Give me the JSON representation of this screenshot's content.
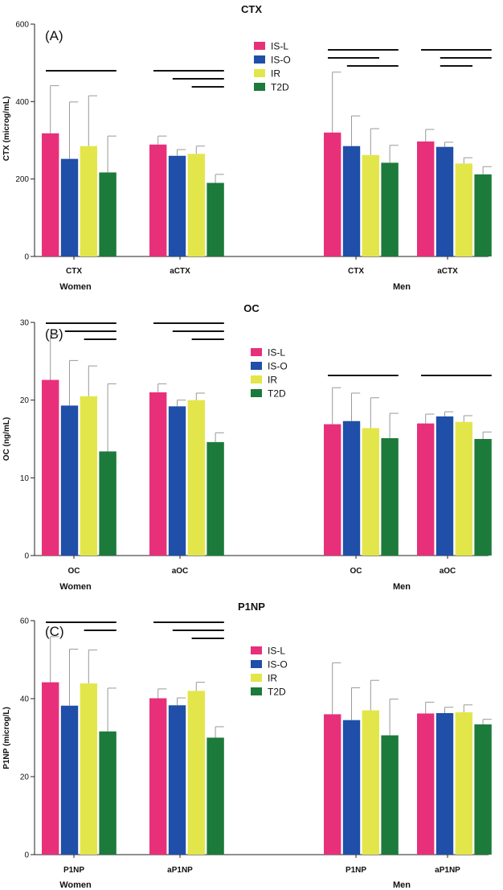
{
  "chart_data": [
    {
      "type": "bar",
      "panel": "(A)",
      "title": "CTX",
      "ylabel": "CTX (microg/mL)",
      "ylim": [
        0,
        600
      ],
      "yticks": [
        0,
        200,
        400,
        600
      ],
      "groups": [
        "Women",
        "Men"
      ],
      "categories": [
        "CTX",
        "aCTX",
        "CTX",
        "aCTX"
      ],
      "series": [
        {
          "name": "IS-L",
          "values": [
            318,
            289,
            320,
            297
          ],
          "errors": [
            123,
            22,
            156,
            31
          ]
        },
        {
          "name": "IS-O",
          "values": [
            252,
            260,
            285,
            283
          ],
          "errors": [
            147,
            16,
            78,
            12
          ]
        },
        {
          "name": "IR",
          "values": [
            285,
            265,
            262,
            240
          ],
          "errors": [
            130,
            20,
            68,
            15
          ]
        },
        {
          "name": "T2D",
          "values": [
            217,
            190,
            242,
            212
          ],
          "errors": [
            94,
            22,
            45,
            20
          ]
        }
      ],
      "significance": [
        {
          "cat": 0,
          "from": 0,
          "to": 3,
          "level": 0
        },
        {
          "cat": 1,
          "from": 0,
          "to": 3,
          "level": 0
        },
        {
          "cat": 1,
          "from": 1,
          "to": 3,
          "level": 1
        },
        {
          "cat": 1,
          "from": 2,
          "to": 3,
          "level": 2
        },
        {
          "cat": 2,
          "from": 0,
          "to": 3,
          "level": 0
        },
        {
          "cat": 2,
          "from": 0,
          "to": 2,
          "level": 1
        },
        {
          "cat": 2,
          "from": 1,
          "to": 3,
          "level": 2
        },
        {
          "cat": 3,
          "from": 0,
          "to": 3,
          "level": 0
        },
        {
          "cat": 3,
          "from": 1,
          "to": 3,
          "level": 1
        },
        {
          "cat": 3,
          "from": 1,
          "to": 2,
          "level": 2
        }
      ],
      "legend_position": "upper-center"
    },
    {
      "type": "bar",
      "panel": "(B)",
      "title": "OC",
      "ylabel": "OC (ng/mL)",
      "ylim": [
        0,
        30
      ],
      "yticks": [
        0,
        10,
        20,
        30
      ],
      "groups": [
        "Women",
        "Men"
      ],
      "categories": [
        "OC",
        "aOC",
        "OC",
        "aOC"
      ],
      "series": [
        {
          "name": "IS-L",
          "values": [
            22.6,
            21.0,
            16.9,
            17.0
          ],
          "errors": [
            5.8,
            1.1,
            4.7,
            1.2
          ]
        },
        {
          "name": "IS-O",
          "values": [
            19.3,
            19.2,
            17.3,
            17.9
          ],
          "errors": [
            5.8,
            0.8,
            3.6,
            0.6
          ]
        },
        {
          "name": "IR",
          "values": [
            20.5,
            20.0,
            16.4,
            17.2
          ],
          "errors": [
            3.9,
            0.9,
            3.9,
            0.8
          ]
        },
        {
          "name": "T2D",
          "values": [
            13.4,
            14.6,
            15.1,
            15.0
          ],
          "errors": [
            8.7,
            1.2,
            3.2,
            0.9
          ]
        }
      ],
      "significance": [
        {
          "cat": 0,
          "from": 0,
          "to": 3,
          "level": 0
        },
        {
          "cat": 0,
          "from": 1,
          "to": 3,
          "level": 1
        },
        {
          "cat": 0,
          "from": 2,
          "to": 3,
          "level": 2
        },
        {
          "cat": 1,
          "from": 0,
          "to": 3,
          "level": 0
        },
        {
          "cat": 1,
          "from": 1,
          "to": 3,
          "level": 1
        },
        {
          "cat": 1,
          "from": 2,
          "to": 3,
          "level": 2
        },
        {
          "cat": 2,
          "from": 0,
          "to": 3,
          "level": 0
        },
        {
          "cat": 3,
          "from": 0,
          "to": 3,
          "level": 0
        }
      ],
      "legend_position": "center"
    },
    {
      "type": "bar",
      "panel": "(C)",
      "title": "P1NP",
      "ylabel": "P1NP (microg/L)",
      "ylim": [
        0,
        60
      ],
      "yticks": [
        0,
        20,
        40,
        60
      ],
      "groups": [
        "Women",
        "Men"
      ],
      "categories": [
        "P1NP",
        "aP1NP",
        "P1NP",
        "aP1NP"
      ],
      "series": [
        {
          "name": "IS-L",
          "values": [
            44.2,
            40.1,
            36.0,
            36.2
          ],
          "errors": [
            11.7,
            2.4,
            13.2,
            2.9
          ]
        },
        {
          "name": "IS-O",
          "values": [
            38.2,
            38.3,
            34.5,
            36.3
          ],
          "errors": [
            14.5,
            1.9,
            8.3,
            1.5
          ]
        },
        {
          "name": "IR",
          "values": [
            43.9,
            42.0,
            37.0,
            36.5
          ],
          "errors": [
            8.6,
            2.2,
            7.7,
            1.9
          ]
        },
        {
          "name": "T2D",
          "values": [
            31.6,
            30.0,
            30.6,
            33.4
          ],
          "errors": [
            11.1,
            2.8,
            9.3,
            1.3
          ]
        }
      ],
      "significance": [
        {
          "cat": 0,
          "from": 0,
          "to": 3,
          "level": 0
        },
        {
          "cat": 0,
          "from": 2,
          "to": 3,
          "level": 1
        },
        {
          "cat": 1,
          "from": 0,
          "to": 3,
          "level": 0
        },
        {
          "cat": 1,
          "from": 1,
          "to": 3,
          "level": 1
        },
        {
          "cat": 1,
          "from": 2,
          "to": 3,
          "level": 2
        }
      ],
      "legend_position": "center"
    }
  ],
  "colors": {
    "IS-L": "#e8307a",
    "IS-O": "#1f4fa8",
    "IR": "#e3e64a",
    "T2D": "#1c7a3a",
    "axis": "#222222",
    "errorbar": "#999999"
  }
}
